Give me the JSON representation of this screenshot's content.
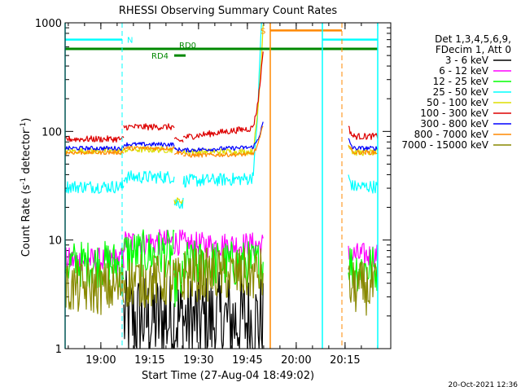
{
  "chart_data": {
    "type": "line",
    "title": "RHESSI Observing Summary Count Rates",
    "xlabel": "Start Time (27-Aug-04 18:49:02)",
    "ylabel_parts": [
      "Count Rate (s",
      "-1",
      " detector",
      "-1",
      ")"
    ],
    "yscale": "log",
    "ylim": [
      1,
      1000
    ],
    "xlim_minutes": [
      0,
      100
    ],
    "x_ticks": [
      {
        "label": "19:00",
        "minute": 10.97
      },
      {
        "label": "19:15",
        "minute": 25.97
      },
      {
        "label": "19:30",
        "minute": 40.97
      },
      {
        "label": "19:45",
        "minute": 55.97
      },
      {
        "label": "20:00",
        "minute": 70.97
      },
      {
        "label": "20:15",
        "minute": 85.97
      }
    ],
    "y_ticks": [
      {
        "label": "1",
        "value": 1
      },
      {
        "label": "10",
        "value": 10
      },
      {
        "label": "100",
        "value": 100
      },
      {
        "label": "1000",
        "value": 1000
      }
    ],
    "legend_header": [
      "Det 1,3,4,5,6,9,",
      "FDecim 1, Att 0"
    ],
    "series": [
      {
        "name": "3 - 6 keV",
        "color": "#000000"
      },
      {
        "name": "6 - 12 keV",
        "color": "#ff00ff"
      },
      {
        "name": "12 - 25 keV",
        "color": "#00ff00"
      },
      {
        "name": "25 - 50 keV",
        "color": "#00ffff"
      },
      {
        "name": "50 - 100 keV",
        "color": "#dddd00"
      },
      {
        "name": "100 - 300 keV",
        "color": "#dd0000"
      },
      {
        "name": "300 - 800 keV",
        "color": "#0000ff"
      },
      {
        "name": "800 - 7000 keV",
        "color": "#ff8800"
      },
      {
        "name": "7000 - 15000 keV",
        "color": "#888800"
      }
    ],
    "flag_labels": {
      "N": "N",
      "S": "S",
      "RD0": "RD0",
      "RD4": "RD4"
    },
    "flag_colors": {
      "N": "#00ffff",
      "S": "#ff8800",
      "RD": "#008800"
    },
    "timestamp": "20-Oct-2021 12:36"
  }
}
